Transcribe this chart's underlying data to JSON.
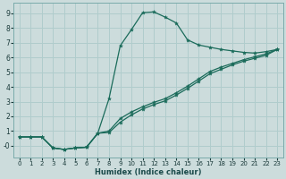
{
  "xlabel": "Humidex (Indice chaleur)",
  "bg_color": "#ccdcdc",
  "grid_color": "#b0cccc",
  "line_color": "#1a6b5a",
  "xlim": [
    -0.5,
    23.5
  ],
  "ylim": [
    -0.8,
    9.7
  ],
  "xticks": [
    0,
    1,
    2,
    3,
    4,
    5,
    6,
    7,
    8,
    9,
    10,
    11,
    12,
    13,
    14,
    15,
    16,
    17,
    18,
    19,
    20,
    21,
    22,
    23
  ],
  "yticks": [
    0,
    1,
    2,
    3,
    4,
    5,
    6,
    7,
    8,
    9
  ],
  "ytick_labels": [
    "-0",
    "1",
    "2",
    "3",
    "4",
    "5",
    "6",
    "7",
    "8",
    "9"
  ],
  "line1_x": [
    0,
    1,
    2,
    3,
    4,
    5,
    6,
    7,
    8,
    9,
    10,
    11,
    12,
    13,
    14,
    15,
    16,
    17,
    18,
    19,
    20,
    21,
    22,
    23
  ],
  "line1_y": [
    0.6,
    0.6,
    0.6,
    -0.15,
    -0.25,
    -0.15,
    -0.1,
    0.85,
    3.2,
    6.8,
    7.9,
    9.05,
    9.1,
    8.75,
    8.35,
    7.2,
    6.85,
    6.7,
    6.55,
    6.45,
    6.35,
    6.3,
    6.4,
    6.55
  ],
  "line2_x": [
    0,
    1,
    2,
    3,
    4,
    5,
    6,
    7,
    8,
    9,
    10,
    11,
    12,
    13,
    14,
    15,
    16,
    17,
    18,
    19,
    20,
    21,
    22,
    23
  ],
  "line2_y": [
    0.6,
    0.6,
    0.6,
    -0.15,
    -0.25,
    -0.15,
    -0.1,
    0.85,
    1.0,
    1.85,
    2.3,
    2.65,
    2.95,
    3.2,
    3.6,
    4.05,
    4.55,
    5.05,
    5.35,
    5.6,
    5.85,
    6.05,
    6.25,
    6.55
  ],
  "line3_x": [
    0,
    1,
    2,
    3,
    4,
    5,
    6,
    7,
    8,
    9,
    10,
    11,
    12,
    13,
    14,
    15,
    16,
    17,
    18,
    19,
    20,
    21,
    22,
    23
  ],
  "line3_y": [
    0.6,
    0.6,
    0.6,
    -0.15,
    -0.25,
    -0.15,
    -0.1,
    0.85,
    0.9,
    1.6,
    2.1,
    2.5,
    2.8,
    3.05,
    3.45,
    3.9,
    4.4,
    4.9,
    5.2,
    5.5,
    5.75,
    5.95,
    6.15,
    6.55
  ]
}
